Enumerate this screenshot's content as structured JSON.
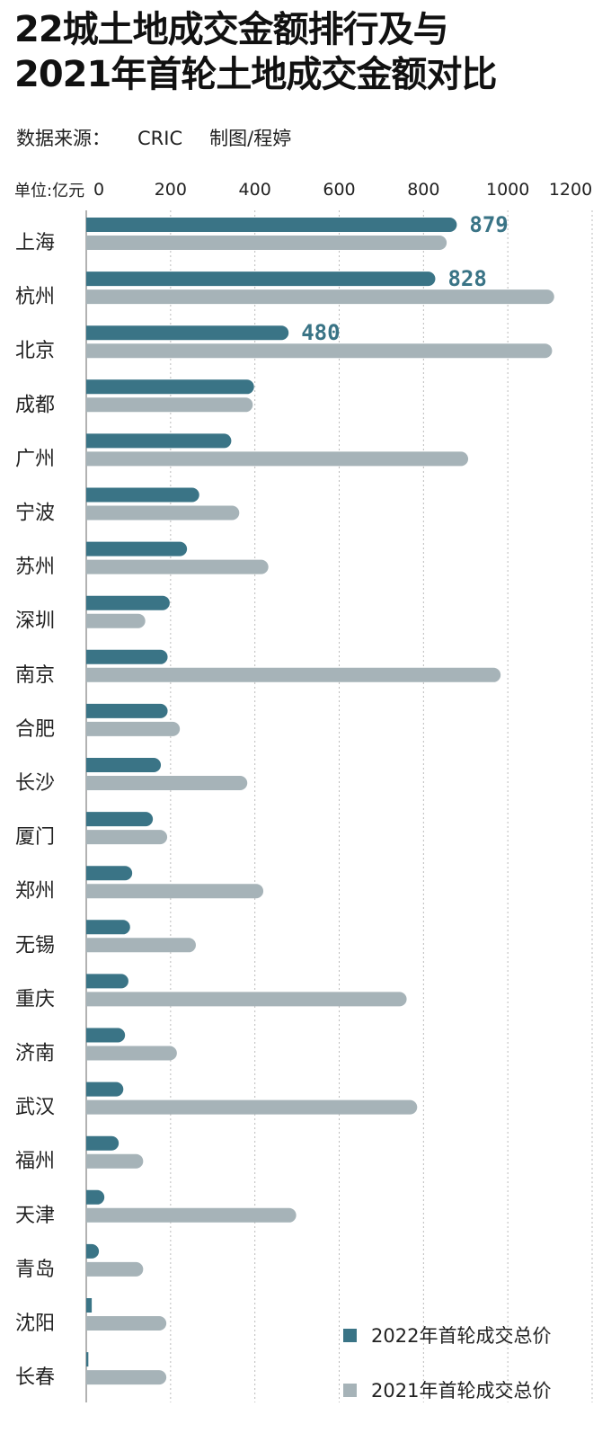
{
  "title_line1": "22城土地成交金额排行及与",
  "title_line2": "2021年首轮土地成交金额对比",
  "source_label": "数据来源：",
  "source_value": "CRIC",
  "credit": "制图/程婷",
  "unit_label": "单位:亿元",
  "colors": {
    "series_2022": "#3a7486",
    "series_2021": "#a6b3b8",
    "gridline": "#bbbbbb",
    "axis": "#999999"
  },
  "chart_data": {
    "type": "bar",
    "orientation": "horizontal",
    "xlim": [
      0,
      1200
    ],
    "ticks": [
      0,
      200,
      400,
      600,
      800,
      1000,
      1200
    ],
    "grid": true,
    "legend_position": "bottom-right",
    "categories": [
      "上海",
      "杭州",
      "北京",
      "成都",
      "广州",
      "宁波",
      "苏州",
      "深圳",
      "南京",
      "合肥",
      "长沙",
      "厦门",
      "郑州",
      "无锡",
      "重庆",
      "济南",
      "武汉",
      "福州",
      "天津",
      "青岛",
      "沈阳",
      "长春"
    ],
    "series": [
      {
        "name": "2022年首轮成交总价",
        "values": [
          879,
          828,
          480,
          398,
          344,
          268,
          239,
          198,
          193,
          193,
          177,
          158,
          109,
          104,
          100,
          92,
          88,
          77,
          43,
          30,
          13,
          5
        ]
      },
      {
        "name": "2021年首轮成交总价",
        "values": [
          855,
          1110,
          1105,
          395,
          906,
          363,
          432,
          140,
          983,
          222,
          382,
          192,
          420,
          260,
          760,
          215,
          785,
          135,
          498,
          135,
          190,
          190
        ]
      }
    ],
    "data_labels": [
      {
        "category": "上海",
        "text": "879"
      },
      {
        "category": "杭州",
        "text": "828"
      },
      {
        "category": "北京",
        "text": "480"
      }
    ]
  }
}
